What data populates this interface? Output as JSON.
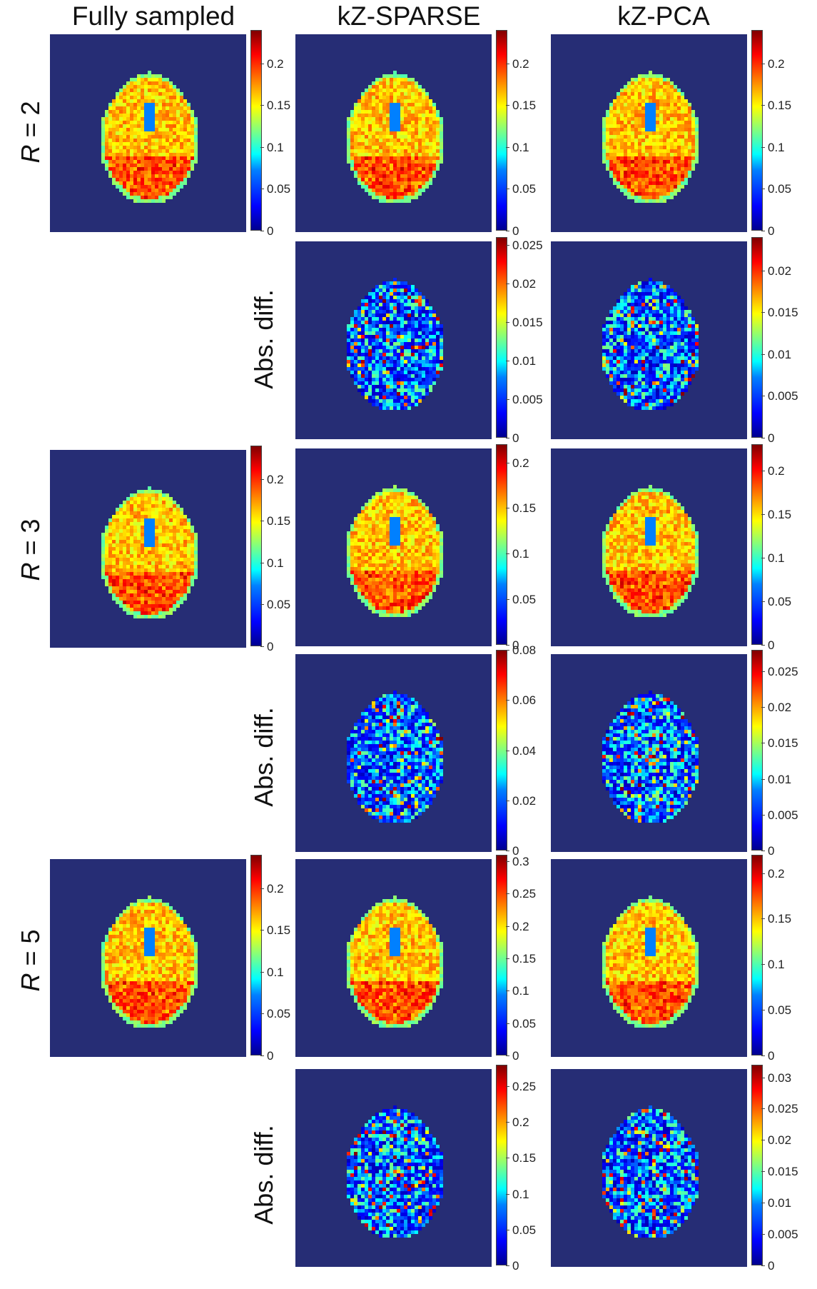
{
  "columns": [
    {
      "key": "full",
      "title": "Fully sampled"
    },
    {
      "key": "sparse",
      "title": "kZ-SPARSE"
    },
    {
      "key": "pca",
      "title": "kZ-PCA"
    }
  ],
  "row_labels": [
    {
      "var": "R",
      "rest": " = 2"
    },
    {
      "var": "R",
      "rest": " = 3"
    },
    {
      "var": "R",
      "rest": " = 5"
    }
  ],
  "diff_label": "Abs. diff.",
  "colormap": "jet",
  "colors": {
    "background": "#262d75"
  },
  "panels": [
    {
      "id": "r2-full",
      "kind": "image",
      "colorbar": {
        "max": 0.24,
        "ticks": [
          "0",
          "0.05",
          "0.1",
          "0.15",
          "0.2"
        ]
      }
    },
    {
      "id": "r2-sparse",
      "kind": "image",
      "colorbar": {
        "max": 0.24,
        "ticks": [
          "0",
          "0.05",
          "0.1",
          "0.15",
          "0.2"
        ]
      }
    },
    {
      "id": "r2-pca",
      "kind": "image",
      "colorbar": {
        "max": 0.24,
        "ticks": [
          "0",
          "0.05",
          "0.1",
          "0.15",
          "0.2"
        ]
      }
    },
    {
      "id": "r2-sparse-diff",
      "kind": "diff",
      "colorbar": {
        "max": 0.026,
        "ticks": [
          "0",
          "0.005",
          "0.01",
          "0.015",
          "0.02",
          "0.025"
        ]
      }
    },
    {
      "id": "r2-pca-diff",
      "kind": "diff",
      "colorbar": {
        "max": 0.024,
        "ticks": [
          "0",
          "0.005",
          "0.01",
          "0.015",
          "0.02"
        ]
      }
    },
    {
      "id": "r3-full",
      "kind": "image",
      "colorbar": {
        "max": 0.24,
        "ticks": [
          "0",
          "0.05",
          "0.1",
          "0.15",
          "0.2"
        ]
      }
    },
    {
      "id": "r3-sparse",
      "kind": "image",
      "colorbar": {
        "max": 0.22,
        "ticks": [
          "0",
          "0.05",
          "0.1",
          "0.15",
          "0.2"
        ]
      }
    },
    {
      "id": "r3-pca",
      "kind": "image",
      "colorbar": {
        "max": 0.23,
        "ticks": [
          "0",
          "0.05",
          "0.1",
          "0.15",
          "0.2"
        ]
      }
    },
    {
      "id": "r3-sparse-diff",
      "kind": "diff",
      "colorbar": {
        "max": 0.08,
        "ticks": [
          "0",
          "0.02",
          "0.04",
          "0.06",
          "0.08"
        ]
      }
    },
    {
      "id": "r3-pca-diff",
      "kind": "diff",
      "colorbar": {
        "max": 0.028,
        "ticks": [
          "0",
          "0.005",
          "0.01",
          "0.015",
          "0.02",
          "0.025"
        ]
      }
    },
    {
      "id": "r5-full",
      "kind": "image",
      "colorbar": {
        "max": 0.24,
        "ticks": [
          "0",
          "0.05",
          "0.1",
          "0.15",
          "0.2"
        ]
      }
    },
    {
      "id": "r5-sparse",
      "kind": "image",
      "colorbar": {
        "max": 0.31,
        "ticks": [
          "0",
          "0.05",
          "0.1",
          "0.15",
          "0.2",
          "0.25",
          "0.3"
        ]
      }
    },
    {
      "id": "r5-pca",
      "kind": "image",
      "colorbar": {
        "max": 0.22,
        "ticks": [
          "0",
          "0.05",
          "0.1",
          "0.15",
          "0.2"
        ]
      }
    },
    {
      "id": "r5-sparse-diff",
      "kind": "diff",
      "colorbar": {
        "max": 0.28,
        "ticks": [
          "0",
          "0.05",
          "0.1",
          "0.15",
          "0.2",
          "0.25"
        ]
      }
    },
    {
      "id": "r5-pca-diff",
      "kind": "diff",
      "colorbar": {
        "max": 0.032,
        "ticks": [
          "0",
          "0.005",
          "0.01",
          "0.015",
          "0.02",
          "0.025",
          "0.03"
        ]
      }
    }
  ]
}
